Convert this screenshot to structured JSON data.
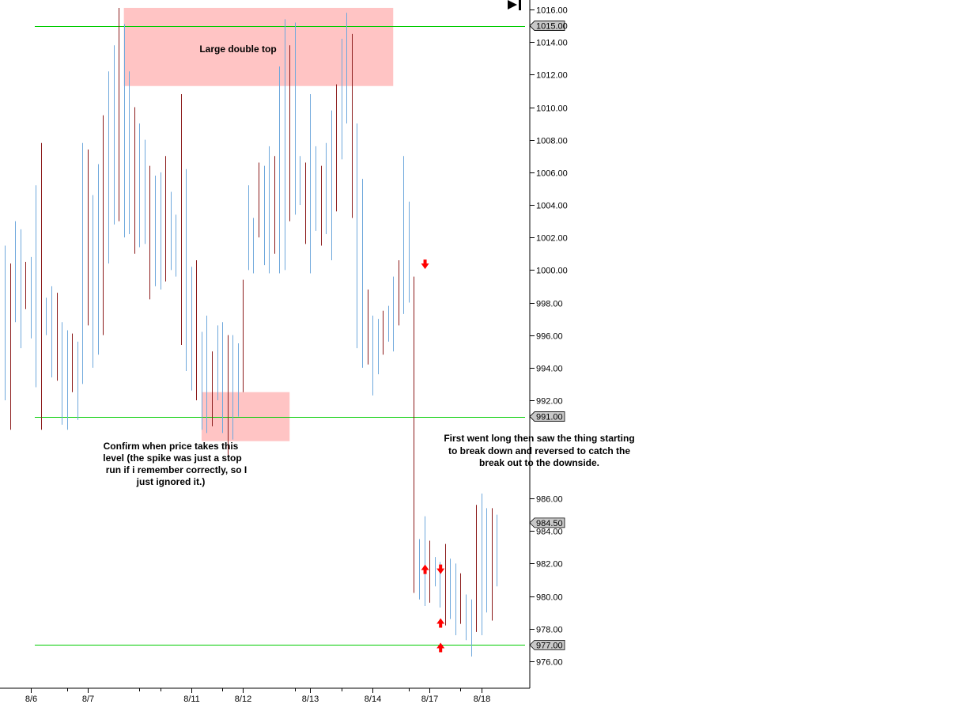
{
  "chart_data": {
    "type": "bar",
    "subtype": "ohlc-range-bars",
    "title": "",
    "xlabel": "",
    "ylabel": "",
    "ylim": [
      974.5,
      1016.5
    ],
    "y_ticks": [
      "1016.00",
      "1014.00",
      "1012.00",
      "1010.00",
      "1008.00",
      "1006.00",
      "1004.00",
      "1002.00",
      "1000.00",
      "998.00",
      "996.00",
      "994.00",
      "992.00",
      "986.00",
      "984.00",
      "982.00",
      "980.00",
      "978.00",
      "976.00"
    ],
    "x_date_labels": [
      "8/6",
      "8/7",
      "8/11",
      "8/12",
      "8/13",
      "8/14",
      "8/17",
      "8/18"
    ],
    "grid": false,
    "colors": {
      "up": "#6fa8dc",
      "down": "#8b1a1a",
      "level_line": "#00cc00",
      "zone_fill": "#ffc4c4",
      "arrow": "#ff0000",
      "price_tag_bg": "#c8c8c8"
    },
    "horizontal_levels": [
      {
        "label": "1015.00",
        "value": 1015.0
      },
      {
        "label": "991.00",
        "value": 991.0
      },
      {
        "label": "977.00",
        "value": 977.0
      }
    ],
    "last_price_label": "984.50",
    "last_price": 984.5,
    "zones": [
      {
        "name": "double-top-zone",
        "y_top": 1016.1,
        "y_bottom": 1011.3,
        "x_from": 23,
        "x_to": 75
      },
      {
        "name": "confirm-zone",
        "y_top": 992.5,
        "y_bottom": 989.5,
        "x_from": 38,
        "x_to": 55
      }
    ],
    "annotations": [
      {
        "name": "double-top-note",
        "lines": [
          "Large double top"
        ]
      },
      {
        "name": "confirm-note",
        "lines": [
          "Confirm when price takes this",
          "level (the spike was just a stop",
          "run if i remember correctly, so I",
          "just ignored it.)"
        ]
      },
      {
        "name": "reversal-note",
        "lines": [
          "First went long then saw the thing starting",
          "to break down and reversed to catch the",
          "break out to the downside."
        ]
      }
    ],
    "signals": [
      {
        "type": "short",
        "bar": 81,
        "price": 1000.3
      },
      {
        "type": "long",
        "bar": 81,
        "price": 981.7
      },
      {
        "type": "short",
        "bar": 84,
        "price": 981.6
      },
      {
        "type": "long",
        "bar": 84,
        "price": 978.4
      },
      {
        "type": "long",
        "bar": 84,
        "price": 976.9
      }
    ],
    "bars": {
      "high": [
        1001.5,
        1000.4,
        1003.0,
        1002.5,
        1000.5,
        1000.8,
        1005.2,
        1007.8,
        998.3,
        999.0,
        998.6,
        996.8,
        996.3,
        996.1,
        995.6,
        1007.8,
        1007.4,
        1004.6,
        1006.5,
        1009.5,
        1012.2,
        1013.8,
        1016.1,
        1015.1,
        1012.2,
        1010.0,
        1009.0,
        1008.0,
        1006.4,
        1005.8,
        1006.0,
        1007.0,
        1004.8,
        1003.4,
        1010.8,
        1006.2,
        1000.2,
        1000.6,
        996.2,
        997.2,
        995.0,
        996.6,
        996.8,
        996.0,
        996.0,
        995.5,
        999.4,
        1005.2,
        1003.2,
        1006.6,
        1006.4,
        1007.6,
        1007.0,
        1012.5,
        1015.4,
        1013.8,
        1015.2,
        1007.0,
        1006.6,
        1010.8,
        1007.6,
        1006.4,
        1007.8,
        1009.8,
        1011.4,
        1014.2,
        1015.8,
        1014.5,
        1009.0,
        1005.6,
        998.8,
        997.2,
        997.0,
        997.5,
        997.8,
        999.6,
        1000.6,
        1007.0,
        1004.2,
        999.6,
        983.5,
        984.9,
        983.4,
        982.4,
        982.1,
        983.2,
        982.3,
        982.0,
        981.4,
        980.1,
        979.8,
        985.6,
        986.3,
        985.4,
        985.4,
        985.0
      ],
      "low": [
        992.0,
        990.2,
        996.8,
        995.2,
        997.6,
        995.8,
        992.8,
        990.2,
        996.0,
        993.4,
        993.2,
        990.5,
        990.2,
        992.5,
        990.8,
        993.0,
        996.6,
        994.0,
        994.8,
        996.0,
        1000.4,
        1002.8,
        1003.0,
        1002.0,
        1002.2,
        1001.0,
        1001.4,
        1001.6,
        998.2,
        999.0,
        998.8,
        999.3,
        1000.0,
        999.6,
        995.4,
        993.8,
        992.6,
        992.0,
        990.2,
        990.0,
        990.4,
        992.0,
        990.0,
        988.6,
        989.6,
        991.0,
        992.5,
        1000.0,
        999.8,
        1002.0,
        1000.3,
        999.8,
        1001.0,
        999.8,
        1000.0,
        1003.0,
        1003.4,
        1004.0,
        1001.6,
        999.8,
        1002.4,
        1001.5,
        1002.2,
        1000.6,
        1003.6,
        1006.8,
        1009.0,
        1003.2,
        995.2,
        994.0,
        994.2,
        992.3,
        993.6,
        994.8,
        995.6,
        995.0,
        996.6,
        997.3,
        998.0,
        980.2,
        979.8,
        979.4,
        979.6,
        980.6,
        979.3,
        978.2,
        978.6,
        977.6,
        978.3,
        977.3,
        976.3,
        977.8,
        977.6,
        979.0,
        978.5,
        980.6
      ]
    }
  }
}
